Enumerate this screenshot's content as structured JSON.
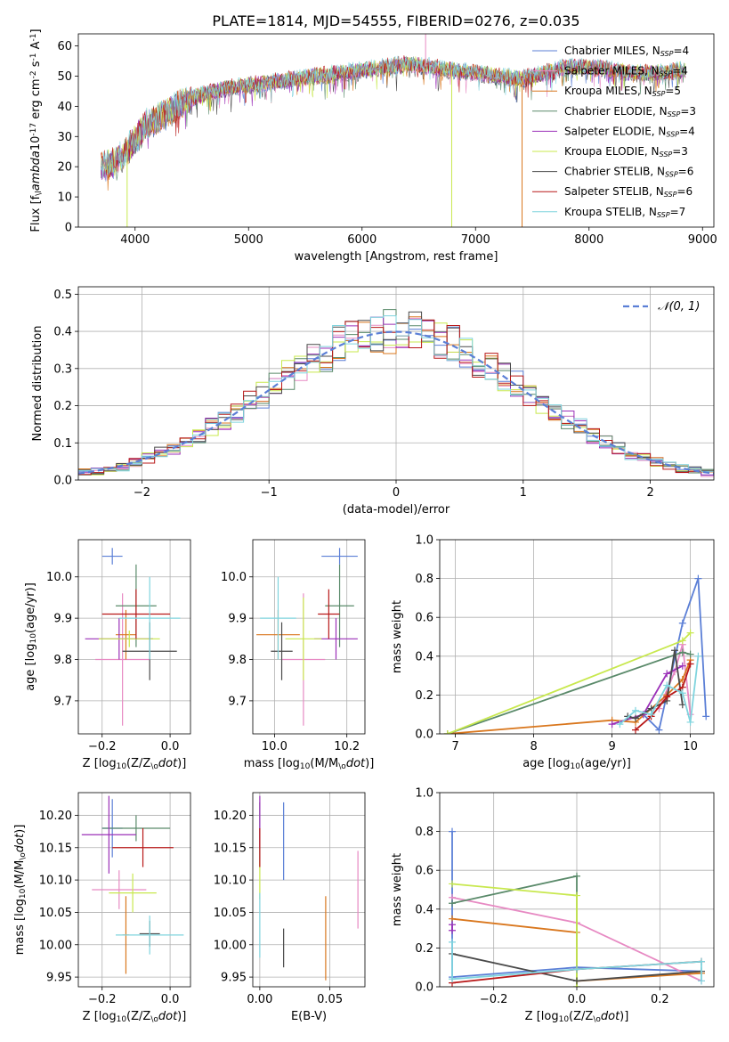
{
  "figure_title": "PLATE=1814, MJD=54555, FIBERID=0276, z=0.035",
  "series_styles": [
    {
      "name": "Chabrier MILES, N$_{SSP}$=4",
      "color": "#5b7fd6"
    },
    {
      "name": "Salpeter MILES, N$_{SSP}$=4",
      "color": "#e78ac3"
    },
    {
      "name": "Kroupa MILES, N$_{SSP}$=5",
      "color": "#d9771e"
    },
    {
      "name": "Chabrier ELODIE, N$_{SSP}$=3",
      "color": "#5a8a6a"
    },
    {
      "name": "Salpeter ELODIE, N$_{SSP}$=4",
      "color": "#9b30b8"
    },
    {
      "name": "Kroupa ELODIE, N$_{SSP}$=3",
      "color": "#c8e84e"
    },
    {
      "name": "Chabrier STELIB, N$_{SSP}$=6",
      "color": "#4a4a4a"
    },
    {
      "name": "Salpeter STELIB, N$_{SSP}$=6",
      "color": "#b81818"
    },
    {
      "name": "Kroupa STELIB, N$_{SSP}$=7",
      "color": "#7fd4de"
    }
  ],
  "chart_data": [
    {
      "id": "spectrum",
      "type": "line",
      "title": "PLATE=1814, MJD=54555, FIBERID=0276, z=0.035",
      "xlabel": "wavelength [Angstrom, rest frame]",
      "ylabel": "Flux [f$_\\lambda$10$^{-17}$ erg cm$^{-2}$ s$^{-1}$ A$^{-1}$]",
      "xlim": [
        3500,
        9100
      ],
      "ylim": [
        0,
        64
      ],
      "xticks": [
        "4000",
        "5000",
        "6000",
        "7000",
        "8000",
        "9000"
      ],
      "yticks": [
        "0",
        "10",
        "20",
        "30",
        "40",
        "50",
        "60"
      ],
      "grid": false,
      "legend": "top-right",
      "legend_entries": [
        {
          "base": "Chabrier MILES, N",
          "sub": "SSP",
          "tail": "=4"
        },
        {
          "base": "Salpeter MILES, N",
          "sub": "SSP",
          "tail": "=4"
        },
        {
          "base": "Kroupa MILES, N",
          "sub": "SSP",
          "tail": "=5"
        },
        {
          "base": "Chabrier ELODIE, N",
          "sub": "SSP",
          "tail": "=3"
        },
        {
          "base": "Salpeter ELODIE, N",
          "sub": "SSP",
          "tail": "=4"
        },
        {
          "base": "Kroupa ELODIE, N",
          "sub": "SSP",
          "tail": "=3"
        },
        {
          "base": "Chabrier STELIB, N",
          "sub": "SSP",
          "tail": "=6"
        },
        {
          "base": "Salpeter STELIB, N",
          "sub": "SSP",
          "tail": "=6"
        },
        {
          "base": "Kroupa STELIB, N",
          "sub": "SSP",
          "tail": "=7"
        }
      ],
      "continuum": {
        "x": [
          3700,
          3800,
          3900,
          4000,
          4100,
          4200,
          4300,
          4400,
          4600,
          4800,
          5000,
          5200,
          5400,
          5600,
          5800,
          6000,
          6200,
          6400,
          6600,
          6800,
          7000,
          7200,
          7400,
          7600,
          7800,
          8000,
          8200,
          8400,
          8600,
          8800
        ],
        "y": [
          20,
          21,
          24,
          29,
          34,
          36,
          38,
          41,
          44,
          46,
          47,
          48,
          49,
          50,
          51,
          52,
          53,
          54,
          53,
          52,
          51,
          50,
          49,
          51,
          53,
          53,
          52,
          51,
          51,
          52
        ]
      },
      "spikes": [
        {
          "x": 3930,
          "ymin": 0,
          "color_index": 5
        },
        {
          "x": 6790,
          "ymin": 0,
          "color_index": 5
        },
        {
          "x": 7410,
          "ymin": 0,
          "color_index": 2
        },
        {
          "x": 6560,
          "ymax": 64,
          "color_index": 1
        }
      ]
    },
    {
      "id": "residuals",
      "type": "histogram",
      "xlabel": "(data-model)/error",
      "ylabel": "Normed distribution",
      "xlim": [
        -2.5,
        2.5
      ],
      "ylim": [
        0,
        0.52
      ],
      "xticks": [
        "−2",
        "−1",
        "0",
        "1",
        "2"
      ],
      "yticks": [
        "0.0",
        "0.1",
        "0.2",
        "0.3",
        "0.4",
        "0.5"
      ],
      "grid": true,
      "legend": "top-right",
      "legend_label": "𝒩(0, 1)",
      "reference_curve": {
        "type": "gaussian",
        "mean": 0,
        "sigma": 1,
        "color": "#5b7fd6"
      },
      "bin_width": 0.1
    },
    {
      "id": "age-vs-Z",
      "type": "errorbar",
      "xlabel": "Z [log$_{10}$(Z/Z$_\\odot$)]",
      "ylabel": "age  [log$_{10}$(age/yr)]",
      "xlim": [
        -0.27,
        0.06
      ],
      "ylim": [
        9.62,
        10.09
      ],
      "xticks": [
        "−0.2",
        "0.0"
      ],
      "yticks": [
        "9.7",
        "9.8",
        "9.9",
        "10.0"
      ],
      "grid": true,
      "points": [
        {
          "x": -0.17,
          "y": 10.05,
          "xerr": 0.03,
          "yerr": 0.02
        },
        {
          "x": -0.14,
          "y": 9.8,
          "xerr": 0.08,
          "yerr": 0.16
        },
        {
          "x": -0.13,
          "y": 9.86,
          "xerr": 0.03,
          "yerr": 0.06
        },
        {
          "x": -0.1,
          "y": 9.93,
          "xerr": 0.06,
          "yerr": 0.1
        },
        {
          "x": -0.15,
          "y": 9.85,
          "xerr": 0.1,
          "yerr": 0.05
        },
        {
          "x": -0.12,
          "y": 9.85,
          "xerr": 0.09,
          "yerr": 0.02
        },
        {
          "x": -0.06,
          "y": 9.82,
          "xerr": 0.08,
          "yerr": 0.07
        },
        {
          "x": -0.1,
          "y": 9.91,
          "xerr": 0.1,
          "yerr": 0.06
        },
        {
          "x": -0.06,
          "y": 9.9,
          "xerr": 0.09,
          "yerr": 0.1
        }
      ]
    },
    {
      "id": "age-vs-mass",
      "type": "errorbar",
      "xlabel": "mass [log$_{10}$(M/M$_\\odot$)]",
      "ylabel": "",
      "xlim": [
        9.94,
        10.25
      ],
      "ylim": [
        9.62,
        10.09
      ],
      "xticks": [
        "10.0",
        "10.2"
      ],
      "yticks": [
        "9.7",
        "9.8",
        "9.9",
        "10.0"
      ],
      "grid": true,
      "points": [
        {
          "x": 10.18,
          "y": 10.05,
          "xerr": 0.05,
          "yerr": 0.02
        },
        {
          "x": 10.08,
          "y": 9.8,
          "xerr": 0.06,
          "yerr": 0.16
        },
        {
          "x": 10.01,
          "y": 9.86,
          "xerr": 0.06,
          "yerr": 0.06
        },
        {
          "x": 10.18,
          "y": 9.93,
          "xerr": 0.04,
          "yerr": 0.1
        },
        {
          "x": 10.17,
          "y": 9.85,
          "xerr": 0.06,
          "yerr": 0.05
        },
        {
          "x": 10.08,
          "y": 9.85,
          "xerr": 0.05,
          "yerr": 0.1
        },
        {
          "x": 10.02,
          "y": 9.82,
          "xerr": 0.03,
          "yerr": 0.07
        },
        {
          "x": 10.15,
          "y": 9.91,
          "xerr": 0.03,
          "yerr": 0.06
        },
        {
          "x": 10.01,
          "y": 9.9,
          "xerr": 0.05,
          "yerr": 0.1
        }
      ]
    },
    {
      "id": "mass-weight-vs-age",
      "type": "line",
      "xlabel": "age  [log$_{10}$(age/yr)]",
      "ylabel": "mass weight",
      "xlim": [
        6.8,
        10.3
      ],
      "ylim": [
        0,
        1
      ],
      "xticks": [
        "7",
        "8",
        "9",
        "10"
      ],
      "yticks": [
        "0.0",
        "0.2",
        "0.4",
        "0.6",
        "0.8",
        "1.0"
      ],
      "grid": true,
      "series": [
        {
          "x": [
            9.4,
            9.6,
            9.9,
            10.1,
            10.2
          ],
          "y": [
            0.1,
            0.02,
            0.57,
            0.8,
            0.09
          ]
        },
        {
          "x": [
            9.6,
            9.8,
            9.9,
            10.0
          ],
          "y": [
            0.13,
            0.32,
            0.46,
            0.1
          ]
        },
        {
          "x": [
            6.9,
            9.0,
            9.3,
            9.7,
            9.9,
            10.0
          ],
          "y": [
            0.0,
            0.07,
            0.06,
            0.2,
            0.28,
            0.38
          ]
        },
        {
          "x": [
            6.9,
            9.9,
            10.0
          ],
          "y": [
            0.0,
            0.42,
            0.41
          ]
        },
        {
          "x": [
            9.0,
            9.4,
            9.7,
            9.9
          ],
          "y": [
            0.05,
            0.1,
            0.31,
            0.35
          ]
        },
        {
          "x": [
            6.9,
            9.9,
            10.0
          ],
          "y": [
            0.0,
            0.48,
            0.52
          ]
        },
        {
          "x": [
            9.2,
            9.3,
            9.5,
            9.7,
            9.8,
            9.9
          ],
          "y": [
            0.09,
            0.08,
            0.13,
            0.17,
            0.43,
            0.15
          ]
        },
        {
          "x": [
            9.3,
            9.5,
            9.7,
            9.9,
            10.0
          ],
          "y": [
            0.02,
            0.09,
            0.19,
            0.24,
            0.36
          ]
        },
        {
          "x": [
            9.1,
            9.3,
            9.5,
            9.7,
            9.9,
            10.0,
            10.1
          ],
          "y": [
            0.05,
            0.12,
            0.1,
            0.25,
            0.21,
            0.06,
            0.4
          ]
        }
      ]
    },
    {
      "id": "mass-vs-Z",
      "type": "errorbar",
      "xlabel": "Z [log$_{10}$(Z/Z$_\\odot$)]",
      "ylabel": "mass [log$_{10}$(M/M$_\\odot$)]",
      "xlim": [
        -0.27,
        0.06
      ],
      "ylim": [
        9.935,
        10.235
      ],
      "xticks": [
        "−0.2",
        "0.0"
      ],
      "yticks": [
        "9.95",
        "10.00",
        "10.05",
        "10.10",
        "10.15",
        "10.20"
      ],
      "grid": true,
      "points": [
        {
          "x": -0.17,
          "y": 10.18,
          "xerr": 0.03,
          "yerr": 0.045
        },
        {
          "x": -0.15,
          "y": 10.085,
          "xerr": 0.08,
          "yerr": 0.03
        },
        {
          "x": -0.13,
          "y": 10.015,
          "xerr": 0.01,
          "yerr": 0.06
        },
        {
          "x": -0.1,
          "y": 10.18,
          "xerr": 0.1,
          "yerr": 0.02
        },
        {
          "x": -0.18,
          "y": 10.17,
          "xerr": 0.08,
          "yerr": 0.06
        },
        {
          "x": -0.11,
          "y": 10.08,
          "xerr": 0.07,
          "yerr": 0.03
        },
        {
          "x": -0.06,
          "y": 10.017,
          "xerr": 0.03,
          "yerr": 0.02
        },
        {
          "x": -0.08,
          "y": 10.15,
          "xerr": 0.09,
          "yerr": 0.03
        },
        {
          "x": -0.06,
          "y": 10.015,
          "xerr": 0.1,
          "yerr": 0.03
        }
      ]
    },
    {
      "id": "mass-vs-ebv",
      "type": "errorbar",
      "xlabel": "E(B-V)",
      "ylabel": "",
      "xlim": [
        -0.005,
        0.075
      ],
      "ylim": [
        9.935,
        10.235
      ],
      "xticks": [
        "0.00",
        "0.05"
      ],
      "yticks": [
        "9.95",
        "10.00",
        "10.05",
        "10.10",
        "10.15",
        "10.20"
      ],
      "grid": true,
      "points": [
        {
          "x": 0.017,
          "y": 10.16,
          "xerr": 0,
          "yerr": 0.06
        },
        {
          "x": 0.07,
          "y": 10.085,
          "xerr": 0,
          "yerr": 0.06
        },
        {
          "x": 0.047,
          "y": 10.01,
          "xerr": 0,
          "yerr": 0.065
        },
        {
          "x": 0.0,
          "y": 10.17,
          "xerr": 0,
          "yerr": 0.05
        },
        {
          "x": 0.0,
          "y": 10.19,
          "xerr": 0,
          "yerr": 0.04
        },
        {
          "x": 0.0,
          "y": 10.1,
          "xerr": 0,
          "yerr": 0.03
        },
        {
          "x": 0.017,
          "y": 9.995,
          "xerr": 0,
          "yerr": 0.03
        },
        {
          "x": 0.0,
          "y": 10.15,
          "xerr": 0,
          "yerr": 0.03
        },
        {
          "x": 0.0,
          "y": 10.03,
          "xerr": 0,
          "yerr": 0.05
        }
      ]
    },
    {
      "id": "mass-weight-vs-Z",
      "type": "line",
      "xlabel": "Z [log$_{10}$(Z/Z$_\\odot$)]",
      "ylabel": "mass weight",
      "xlim": [
        -0.33,
        0.33
      ],
      "ylim": [
        0,
        1
      ],
      "xticks": [
        "−0.2",
        "0.0",
        "0.2"
      ],
      "yticks": [
        "0.0",
        "0.2",
        "0.4",
        "0.6",
        "0.8",
        "1.0"
      ],
      "grid": true,
      "series": [
        {
          "x": [
            -0.3,
            -0.3,
            0.0,
            0.3
          ],
          "y": [
            0.8,
            0.05,
            0.1,
            0.08
          ]
        },
        {
          "x": [
            -0.3,
            0.0,
            0.3
          ],
          "y": [
            0.46,
            0.33,
            0.03
          ]
        },
        {
          "x": [
            -0.3,
            0.0,
            0.0,
            0.3
          ],
          "y": [
            0.35,
            0.28,
            0.03,
            0.07
          ]
        },
        {
          "x": [
            -0.3,
            0.0,
            0.0
          ],
          "y": [
            0.43,
            0.57,
            0.0
          ]
        },
        {
          "x": [
            -0.3,
            -0.3
          ],
          "y": [
            0.32,
            0.29
          ]
        },
        {
          "x": [
            -0.3,
            0.0,
            0.0
          ],
          "y": [
            0.53,
            0.47,
            0.0
          ]
        },
        {
          "x": [
            -0.3,
            0.0,
            0.3
          ],
          "y": [
            0.17,
            0.03,
            0.08
          ]
        },
        {
          "x": [
            -0.3,
            0.0,
            0.3
          ],
          "y": [
            0.02,
            0.09,
            0.13
          ]
        },
        {
          "x": [
            -0.3,
            -0.3,
            0.0,
            0.3,
            0.3
          ],
          "y": [
            0.23,
            0.04,
            0.09,
            0.13,
            0.03
          ]
        }
      ]
    }
  ]
}
